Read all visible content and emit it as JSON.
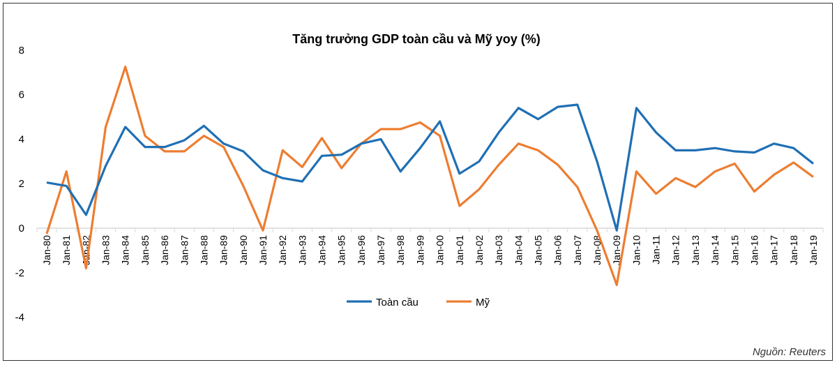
{
  "chart_data": {
    "type": "line",
    "title": "Tăng trưởng GDP toàn cầu và Mỹ yoy (%)",
    "xlabel": "",
    "ylabel": "",
    "ylim": [
      -4,
      8
    ],
    "yticks": [
      -4,
      -2,
      0,
      2,
      4,
      6,
      8
    ],
    "grid": false,
    "legend": "bottom-center",
    "categories": [
      "Jan-80",
      "Jan-81",
      "Jan-82",
      "Jan-83",
      "Jan-84",
      "Jan-85",
      "Jan-86",
      "Jan-87",
      "Jan-88",
      "Jan-89",
      "Jan-90",
      "Jan-91",
      "Jan-92",
      "Jan-93",
      "Jan-94",
      "Jan-95",
      "Jan-96",
      "Jan-97",
      "Jan-98",
      "Jan-99",
      "Jan-00",
      "Jan-01",
      "Jan-02",
      "Jan-03",
      "Jan-04",
      "Jan-05",
      "Jan-06",
      "Jan-07",
      "Jan-08",
      "Jan-09",
      "Jan-10",
      "Jan-11",
      "Jan-12",
      "Jan-13",
      "Jan-14",
      "Jan-15",
      "Jan-16",
      "Jan-17",
      "Jan-18",
      "Jan-19"
    ],
    "series": [
      {
        "name": "Toàn cầu",
        "color": "#1F6FB4",
        "values": [
          2.05,
          1.9,
          0.6,
          2.8,
          4.55,
          3.65,
          3.65,
          3.95,
          4.6,
          3.8,
          3.45,
          2.6,
          2.25,
          2.1,
          3.25,
          3.3,
          3.8,
          4.0,
          2.55,
          3.6,
          4.8,
          2.45,
          3.0,
          4.3,
          5.4,
          4.9,
          5.45,
          5.55,
          3.0,
          -0.1,
          5.4,
          4.3,
          3.5,
          3.5,
          3.6,
          3.45,
          3.4,
          3.8,
          3.6,
          2.9
        ]
      },
      {
        "name": "Mỹ",
        "color": "#ED7D31",
        "values": [
          -0.25,
          2.55,
          -1.8,
          4.55,
          7.25,
          4.15,
          3.45,
          3.45,
          4.15,
          3.65,
          1.9,
          -0.1,
          3.5,
          2.75,
          4.05,
          2.7,
          3.8,
          4.45,
          4.45,
          4.75,
          4.15,
          1.0,
          1.75,
          2.85,
          3.8,
          3.5,
          2.85,
          1.85,
          -0.1,
          -2.55,
          2.55,
          1.55,
          2.25,
          1.85,
          2.55,
          2.9,
          1.65,
          2.4,
          2.95,
          2.3
        ]
      }
    ]
  },
  "source": "Nguồn: Reuters"
}
